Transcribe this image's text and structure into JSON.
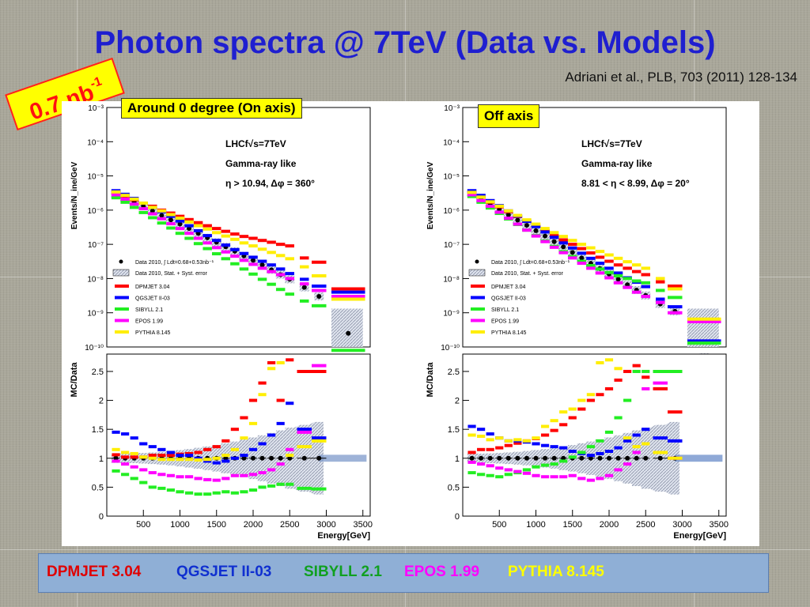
{
  "slide": {
    "title": "Photon spectra @ 7TeV (Data vs. Models)",
    "citation": "Adriani et al., PLB, 703 (2011) 128-134",
    "lumi_base": "0.7 nb",
    "lumi_exp": "-1",
    "left_box": "Around 0 degree (On axis)",
    "right_box": "Off axis"
  },
  "legend_bar": [
    {
      "label": "DPMJET 3.04",
      "color": "#e00000"
    },
    {
      "label": "QGSJET II-03",
      "color": "#1030d0"
    },
    {
      "label": "SIBYLL 2.1",
      "color": "#10a020"
    },
    {
      "label": "EPOS 1.99",
      "color": "#ff00ff"
    },
    {
      "label": "PYTHIA 8.145",
      "color": "#ffff00"
    }
  ],
  "colors": {
    "DPMJET 3.04": "#ff0000",
    "QGSJET II-03": "#0000ff",
    "SIBYLL 2.1": "#22ee22",
    "EPOS 1.99": "#ff00ff",
    "PYTHIA 8.145": "#ffee00",
    "Data": "#000000"
  },
  "plot_text": {
    "upper_ylabel": "Events/N_ine/GeV",
    "lower_ylabel": "MC/Data",
    "xlabel": "Energy[GeV]",
    "exp_label": "LHCf√s=7TeV",
    "sel_label": "Gamma-ray like",
    "legend_data": "Data 2010, ∫ Ldt=0.68+0.53nb⁻¹",
    "legend_err": "Data 2010, Stat. + Syst. error",
    "legend_models": [
      "DPMJET 3.04",
      "QGSJET II-03",
      "SIBYLL 2.1",
      "EPOS 1.99",
      "PYTHIA 8.145"
    ]
  },
  "chart_data": [
    {
      "type": "scatter",
      "title": "Around 0 degree (On axis)",
      "cut": "η > 10.94, Δφ = 360°",
      "xlabel": "Energy[GeV]",
      "upper": {
        "ylabel": "Events/N_ine/GeV",
        "yscale": "log",
        "ylim": [
          1e-10,
          0.001
        ],
        "xlim": [
          0,
          3600
        ],
        "yticks": [
          "10⁻³",
          "10⁻⁴",
          "10⁻⁵",
          "10⁻⁶",
          "10⁻⁷",
          "10⁻⁸",
          "10⁻⁹",
          "10⁻¹⁰"
        ],
        "data_x": [
          125,
          250,
          375,
          500,
          625,
          750,
          875,
          1000,
          1125,
          1250,
          1375,
          1500,
          1625,
          1750,
          1875,
          2000,
          2125,
          2250,
          2375,
          2500,
          2700,
          2900,
          3300
        ],
        "series": [
          {
            "name": "Data",
            "values": [
              3e-06,
              2.3e-06,
              1.7e-06,
              1.3e-06,
              9.5e-07,
              7e-07,
              5.2e-07,
              3.9e-07,
              2.9e-07,
              2.1e-07,
              1.55e-07,
              1.15e-07,
              8.5e-08,
              6.3e-08,
              4.6e-08,
              3.4e-08,
              2.5e-08,
              1.8e-08,
              1.3e-08,
              9.5e-09,
              5.5e-09,
              3e-09,
              2.5e-10
            ]
          },
          {
            "name": "DPMJET 3.04",
            "values": [
              3.2e-06,
              2.6e-06,
              2e-06,
              1.6e-06,
              1.3e-06,
              1e-06,
              8.2e-07,
              6.6e-07,
              5.3e-07,
              4.3e-07,
              3.5e-07,
              2.9e-07,
              2.4e-07,
              2e-07,
              1.7e-07,
              1.5e-07,
              1.3e-07,
              1.15e-07,
              1e-07,
              9e-08,
              4e-08,
              3e-08,
              5e-09
            ]
          },
          {
            "name": "QGSJET II-03",
            "values": [
              3.7e-06,
              2.9e-06,
              2.2e-06,
              1.6e-06,
              1.2e-06,
              9e-07,
              6.6e-07,
              4.8e-07,
              3.5e-07,
              2.5e-07,
              1.8e-07,
              1.3e-07,
              9.5e-08,
              7e-08,
              5.4e-08,
              4.2e-08,
              3.2e-08,
              2.5e-08,
              1.9e-08,
              1.4e-08,
              9.5e-09,
              6e-09,
              4e-09
            ]
          },
          {
            "name": "SIBYLL 2.1",
            "values": [
              2.3e-06,
              1.7e-06,
              1.2e-06,
              8.5e-07,
              6e-07,
              4.2e-07,
              3e-07,
              2.1e-07,
              1.5e-07,
              1.05e-07,
              7.5e-08,
              5.3e-08,
              3.8e-08,
              2.7e-08,
              1.9e-08,
              1.35e-08,
              9.5e-09,
              6.8e-09,
              4.8e-09,
              3.5e-09,
              2.2e-09,
              1.6e-09,
              8e-11
            ]
          },
          {
            "name": "EPOS 1.99",
            "values": [
              2.8e-06,
              2.1e-06,
              1.5e-06,
              1.1e-06,
              7.8e-07,
              5.6e-07,
              4e-07,
              2.9e-07,
              2.1e-07,
              1.5e-07,
              1.1e-07,
              8e-08,
              6e-08,
              4.5e-08,
              3.4e-08,
              2.6e-08,
              2e-08,
              1.6e-08,
              1.3e-08,
              1e-08,
              7e-09,
              4.5e-09,
              3e-09
            ]
          },
          {
            "name": "PYTHIA 8.145",
            "values": [
              3.4e-06,
              2.7e-06,
              2.1e-06,
              1.6e-06,
              1.2e-06,
              9.5e-07,
              7.4e-07,
              5.8e-07,
              4.5e-07,
              3.5e-07,
              2.8e-07,
              2.2e-07,
              1.75e-07,
              1.4e-07,
              1.1e-07,
              9e-08,
              7.2e-08,
              5.8e-08,
              4.7e-08,
              3.8e-08,
              2.2e-08,
              1.2e-08,
              2.5e-09
            ]
          }
        ]
      },
      "lower": {
        "ylabel": "MC/Data",
        "ylim": [
          0,
          2.8
        ],
        "xlim": [
          0,
          3600
        ],
        "yticks": [
          0,
          0.5,
          1,
          1.5,
          2,
          2.5
        ],
        "xticks": [
          500,
          1000,
          1500,
          2000,
          2500,
          3000,
          3500
        ],
        "data_x": [
          125,
          250,
          375,
          500,
          625,
          750,
          875,
          1000,
          1125,
          1250,
          1375,
          1500,
          1625,
          1750,
          1875,
          2000,
          2125,
          2250,
          2375,
          2500,
          2700,
          2900
        ],
        "series": [
          {
            "name": "Data",
            "values": [
              1,
              1,
              1,
              1,
              1,
              1,
              1,
              1,
              1,
              1,
              1,
              1,
              1,
              1,
              1,
              1,
              1,
              1,
              1,
              1,
              1,
              1
            ]
          },
          {
            "name": "DPMJET 3.04",
            "values": [
              1.06,
              1.02,
              1.02,
              1.02,
              1.05,
              1.05,
              1.05,
              1.07,
              1.08,
              1.1,
              1.15,
              1.2,
              1.3,
              1.5,
              1.7,
              2.0,
              2.3,
              2.65,
              2.0,
              2.7,
              2.5,
              2.5
            ]
          },
          {
            "name": "QGSJET II-03",
            "values": [
              1.45,
              1.42,
              1.35,
              1.25,
              1.2,
              1.15,
              1.1,
              1.05,
              1.05,
              1.0,
              0.95,
              0.92,
              0.95,
              1.0,
              1.05,
              1.15,
              1.25,
              1.4,
              1.6,
              1.95,
              1.5,
              1.35
            ]
          },
          {
            "name": "SIBYLL 2.1",
            "values": [
              0.78,
              0.72,
              0.65,
              0.58,
              0.5,
              0.48,
              0.45,
              0.42,
              0.4,
              0.38,
              0.38,
              0.4,
              0.42,
              0.4,
              0.42,
              0.45,
              0.5,
              0.52,
              0.55,
              0.55,
              0.48,
              0.47
            ]
          },
          {
            "name": "EPOS 1.99",
            "values": [
              0.95,
              0.9,
              0.85,
              0.8,
              0.75,
              0.72,
              0.7,
              0.68,
              0.68,
              0.65,
              0.63,
              0.62,
              0.65,
              0.7,
              0.7,
              0.72,
              0.75,
              0.8,
              0.9,
              1.15,
              1.45,
              2.6
            ]
          },
          {
            "name": "PYTHIA 8.145",
            "values": [
              1.15,
              1.1,
              1.08,
              1.02,
              1.0,
              0.98,
              0.98,
              0.98,
              0.98,
              0.97,
              0.98,
              1.0,
              1.05,
              1.15,
              1.35,
              1.6,
              2.1,
              2.55,
              2.65,
              1.05,
              1.2,
              1.3
            ]
          }
        ]
      }
    },
    {
      "type": "scatter",
      "title": "Off axis",
      "cut": "8.81 < η < 8.99, Δφ = 20°",
      "xlabel": "Energy[GeV]",
      "upper": {
        "ylabel": "Events/N_ine/GeV",
        "yscale": "log",
        "ylim": [
          1e-10,
          0.001
        ],
        "xlim": [
          0,
          3600
        ],
        "yticks": [
          "10⁻³",
          "10⁻⁴",
          "10⁻⁵",
          "10⁻⁶",
          "10⁻⁷",
          "10⁻⁸",
          "10⁻⁹",
          "10⁻¹⁰"
        ],
        "data_x": [
          125,
          250,
          375,
          500,
          625,
          750,
          875,
          1000,
          1125,
          1250,
          1375,
          1500,
          1625,
          1750,
          1875,
          2000,
          2125,
          2250,
          2375,
          2500,
          2700,
          2900,
          3300
        ],
        "series": [
          {
            "name": "Data",
            "values": [
              3e-06,
              2.1e-06,
              1.5e-06,
              1.05e-06,
              7.3e-07,
              5.1e-07,
              3.6e-07,
              2.5e-07,
              1.75e-07,
              1.2e-07,
              8.4e-08,
              5.8e-08,
              4e-08,
              2.8e-08,
              1.95e-08,
              1.35e-08,
              9.5e-09,
              6.6e-09,
              4.6e-09,
              3.2e-09,
              1.8e-09,
              1.1e-09,
              5e-11
            ]
          },
          {
            "name": "DPMJET 3.04",
            "values": [
              3.3e-06,
              2.4e-06,
              1.7e-06,
              1.25e-06,
              9e-07,
              6.5e-07,
              4.7e-07,
              3.4e-07,
              2.5e-07,
              1.8e-07,
              1.35e-07,
              1e-07,
              7.5e-08,
              5.6e-08,
              4.2e-08,
              3.2e-08,
              2.5e-08,
              2e-08,
              1.6e-08,
              1.3e-08,
              8e-09,
              6e-09,
              6e-10
            ]
          },
          {
            "name": "QGSJET II-03",
            "values": [
              3.7e-06,
              2.7e-06,
              1.9e-06,
              1.35e-06,
              9.5e-07,
              6.7e-07,
              4.7e-07,
              3.3e-07,
              2.3e-07,
              1.6e-07,
              1.1e-07,
              7.8e-08,
              5.5e-08,
              3.9e-08,
              2.8e-08,
              2e-08,
              1.45e-08,
              1.05e-08,
              7.8e-09,
              5.8e-09,
              2.5e-09,
              1.5e-09,
              1.5e-10
            ]
          },
          {
            "name": "SIBYLL 2.1",
            "values": [
              2.5e-06,
              1.7e-06,
              1.15e-06,
              8e-07,
              5.5e-07,
              3.8e-07,
              2.6e-07,
              1.8e-07,
              1.25e-07,
              8.7e-08,
              6.1e-08,
              4.4e-08,
              3.2e-08,
              2.4e-08,
              1.9e-08,
              1.5e-08,
              1.2e-08,
              1e-08,
              8.5e-09,
              7.5e-09,
              4.5e-09,
              2.8e-09,
              1.3e-10
            ]
          },
          {
            "name": "EPOS 1.99",
            "values": [
              2.8e-06,
              1.9e-06,
              1.3e-06,
              8.7e-07,
              5.8e-07,
              3.9e-07,
              2.6e-07,
              1.75e-07,
              1.2e-07,
              8.2e-08,
              5.7e-08,
              4e-08,
              2.8e-08,
              2e-08,
              1.45e-08,
              1.05e-08,
              7.5e-09,
              5.5e-09,
              4e-09,
              3e-09,
              2e-09,
              1e-09,
              5.5e-10
            ]
          },
          {
            "name": "PYTHIA 8.145",
            "values": [
              3.3e-06,
              2.4e-06,
              1.75e-06,
              1.3e-06,
              9.5e-07,
              7e-07,
              5.2e-07,
              3.9e-07,
              2.9e-07,
              2.2e-07,
              1.7e-07,
              1.3e-07,
              1e-07,
              7.9e-08,
              6.2e-08,
              4.9e-08,
              3.9e-08,
              3.1e-08,
              2.5e-08,
              2e-08,
              1e-08,
              5e-09,
              6.5e-10
            ]
          }
        ]
      },
      "lower": {
        "ylabel": "MC/Data",
        "ylim": [
          0,
          2.8
        ],
        "xlim": [
          0,
          3600
        ],
        "yticks": [
          0,
          0.5,
          1,
          1.5,
          2,
          2.5
        ],
        "xticks": [
          500,
          1000,
          1500,
          2000,
          2500,
          3000,
          3500
        ],
        "data_x": [
          125,
          250,
          375,
          500,
          625,
          750,
          875,
          1000,
          1125,
          1250,
          1375,
          1500,
          1625,
          1750,
          1875,
          2000,
          2125,
          2250,
          2375,
          2500,
          2700,
          2900
        ],
        "series": [
          {
            "name": "Data",
            "values": [
              1,
              1,
              1,
              1,
              1,
              1,
              1,
              1,
              1,
              1,
              1,
              1,
              1,
              1,
              1,
              1,
              1,
              1,
              1,
              1,
              1,
              1
            ]
          },
          {
            "name": "DPMJET 3.04",
            "values": [
              1.1,
              1.15,
              1.15,
              1.18,
              1.22,
              1.26,
              1.3,
              1.34,
              1.4,
              1.48,
              1.58,
              1.7,
              1.85,
              2.0,
              2.1,
              2.2,
              2.35,
              2.5,
              2.6,
              2.4,
              2.2,
              1.8
            ]
          },
          {
            "name": "QGSJET II-03",
            "values": [
              1.55,
              1.5,
              1.42,
              1.35,
              1.3,
              1.3,
              1.28,
              1.25,
              1.22,
              1.2,
              1.18,
              1.12,
              1.08,
              1.05,
              1.08,
              1.12,
              1.18,
              1.3,
              1.4,
              1.5,
              1.35,
              1.3
            ]
          },
          {
            "name": "SIBYLL 2.1",
            "values": [
              0.75,
              0.72,
              0.7,
              0.68,
              0.72,
              0.75,
              0.8,
              0.85,
              0.88,
              0.9,
              0.95,
              1.02,
              1.1,
              1.2,
              1.3,
              1.45,
              1.7,
              2.0,
              2.5,
              2.5,
              2.5,
              2.5
            ]
          },
          {
            "name": "EPOS 1.99",
            "values": [
              0.93,
              0.9,
              0.87,
              0.83,
              0.8,
              0.77,
              0.74,
              0.7,
              0.68,
              0.68,
              0.68,
              0.7,
              0.65,
              0.62,
              0.65,
              0.7,
              0.8,
              0.9,
              1.1,
              2.2,
              2.3,
              1.0
            ]
          },
          {
            "name": "PYTHIA 8.145",
            "values": [
              1.4,
              1.38,
              1.32,
              1.35,
              1.3,
              1.32,
              1.3,
              1.35,
              1.55,
              1.65,
              1.8,
              1.85,
              2.0,
              2.1,
              2.65,
              2.7,
              2.55,
              1.35,
              1.2,
              1.25,
              1.1,
              1.0
            ]
          }
        ]
      }
    }
  ]
}
